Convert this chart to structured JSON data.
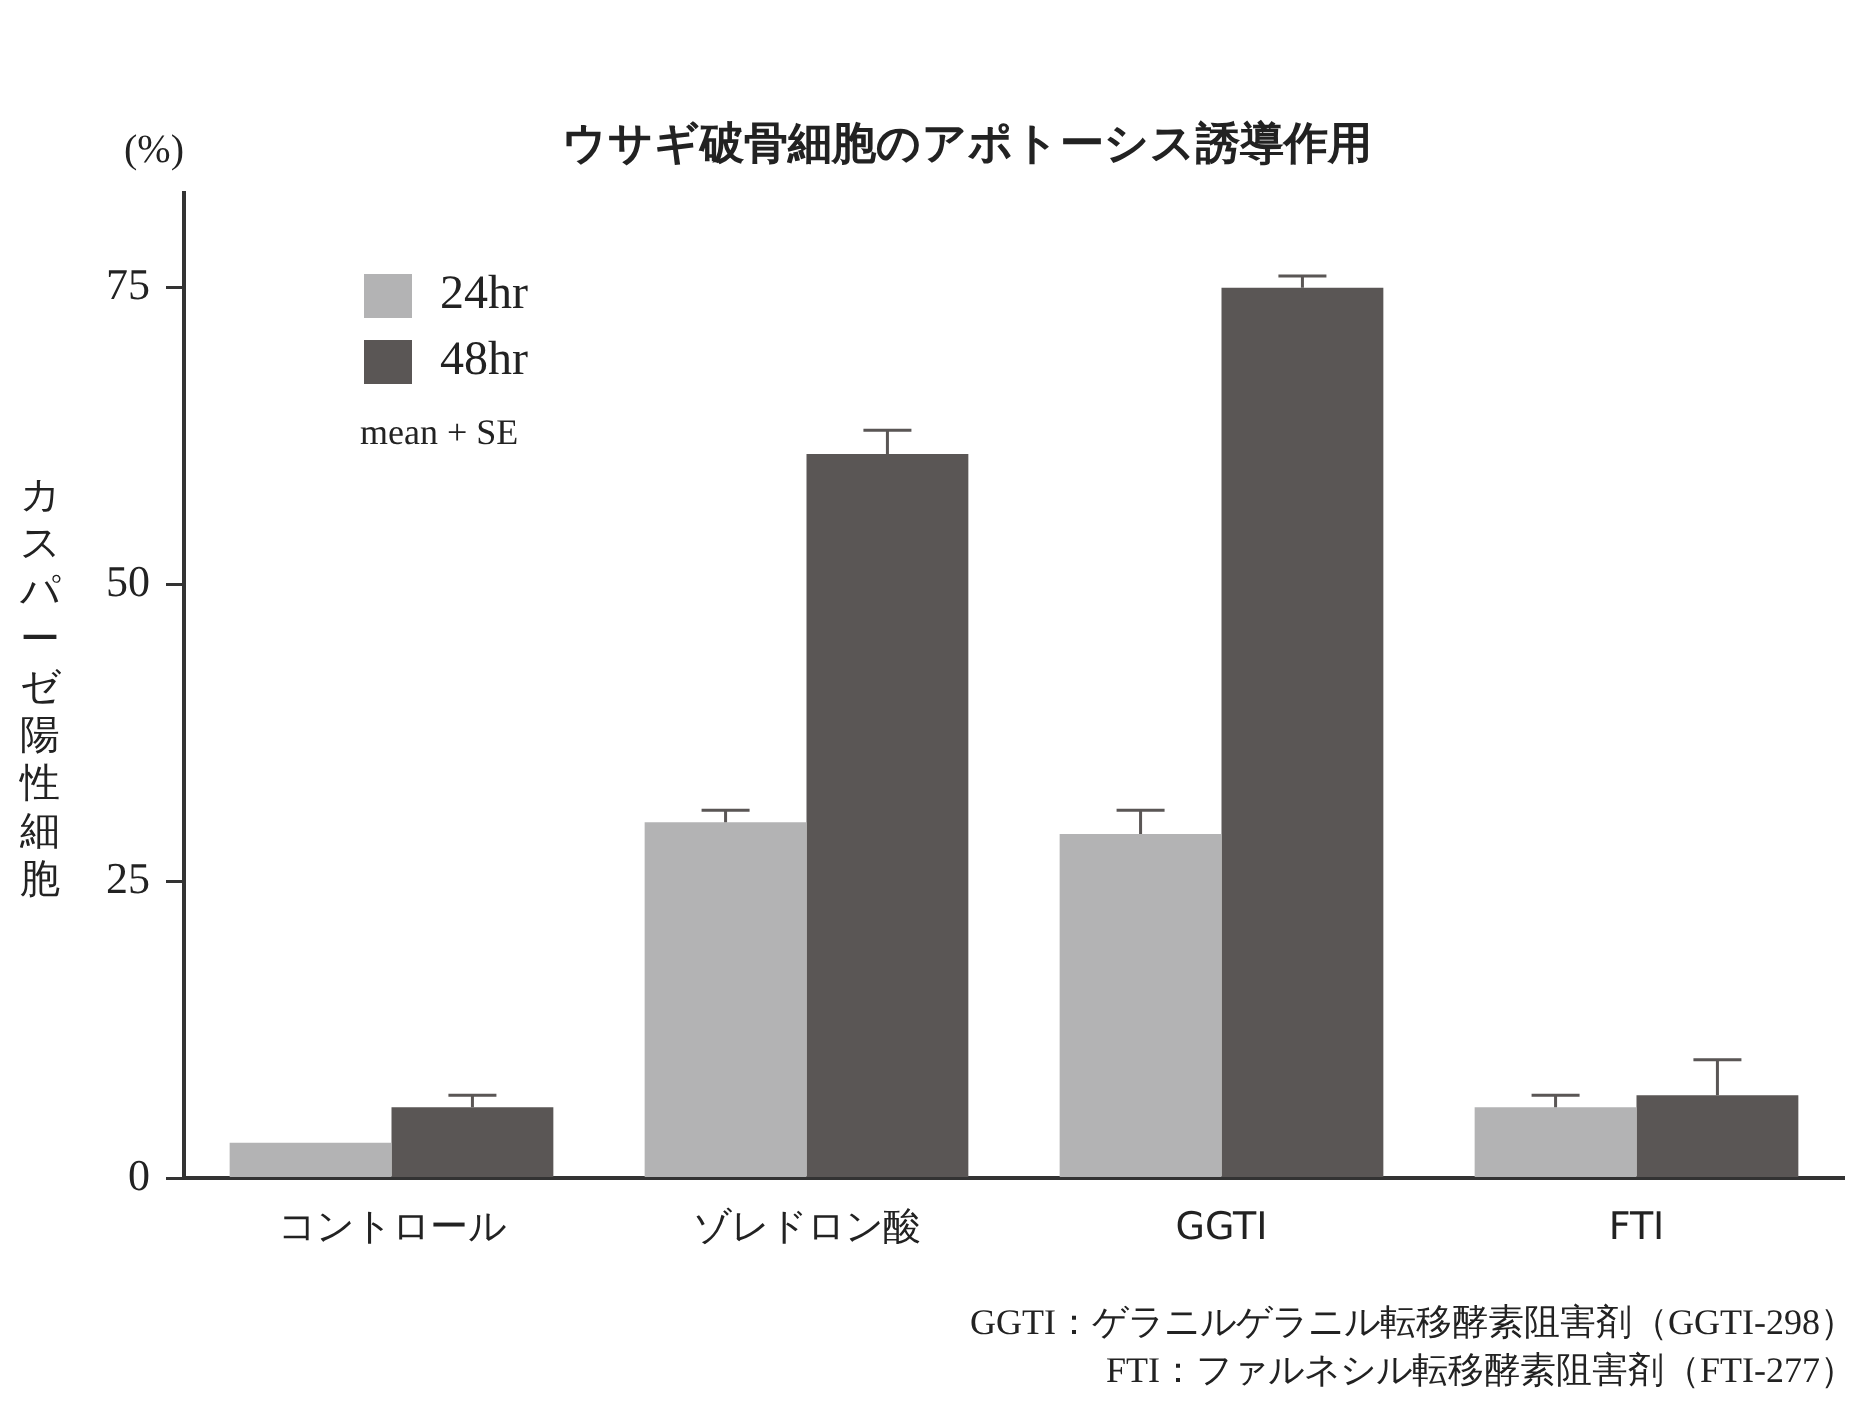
{
  "chart_data": {
    "type": "bar",
    "title": "ウサギ破骨細胞のアポトーシス誘導作用",
    "ylabel": "カスパーゼ陽性細胞",
    "categories": [
      "コントロール",
      "ゾレドロン酸",
      "GGTI",
      "FTI"
    ],
    "series": [
      {
        "name": "24hr",
        "color": "#b3b3b4",
        "values": [
          3,
          30,
          29,
          6
        ],
        "errors": [
          null,
          1,
          2,
          1
        ]
      },
      {
        "name": "48hr",
        "color": "#5a5655",
        "values": [
          6,
          61,
          75,
          7
        ],
        "errors": [
          1,
          2,
          1,
          3
        ]
      }
    ],
    "ylim": [
      0,
      83
    ],
    "yticks": [
      0,
      25,
      50,
      75
    ],
    "legend": "top left",
    "annotations": [
      "(%)",
      "mean + SE",
      "GGTI：ゲラニルゲラニル転移酵素阻害剤（GGTI-298）",
      "FTI：ファルネシル転移酵素阻害剤（FTI-277）"
    ]
  }
}
